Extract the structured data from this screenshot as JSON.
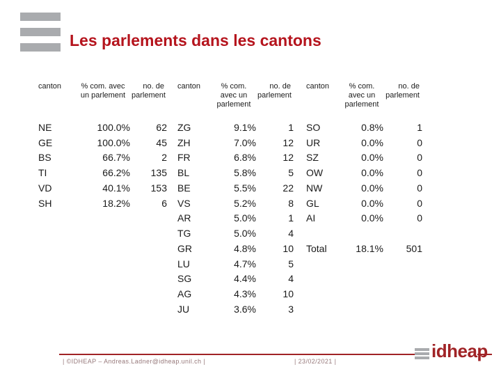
{
  "slide": {
    "title": "Les parlements dans les cantons"
  },
  "table": {
    "col_headers": {
      "canton": "canton",
      "percent_two_line": [
        "% com. avec",
        "un parlement"
      ],
      "percent_three_line": [
        "% com.",
        "avec un",
        "parlement"
      ],
      "count_two_line": [
        "no. de",
        "parlement"
      ]
    },
    "total_label": "Total",
    "groups": [
      {
        "percent_header_lines": 2,
        "rows": [
          [
            "NE",
            "100.0%",
            "62"
          ],
          [
            "GE",
            "100.0%",
            "45"
          ],
          [
            "BS",
            "66.7%",
            "2"
          ],
          [
            "TI",
            "66.2%",
            "135"
          ],
          [
            "VD",
            "40.1%",
            "153"
          ],
          [
            "SH",
            "18.2%",
            "6"
          ]
        ]
      },
      {
        "percent_header_lines": 3,
        "rows": [
          [
            "ZG",
            "9.1%",
            "1"
          ],
          [
            "ZH",
            "7.0%",
            "12"
          ],
          [
            "FR",
            "6.8%",
            "12"
          ],
          [
            "BL",
            "5.8%",
            "5"
          ],
          [
            "BE",
            "5.5%",
            "22"
          ],
          [
            "VS",
            "5.2%",
            "8"
          ],
          [
            "AR",
            "5.0%",
            "1"
          ],
          [
            "TG",
            "5.0%",
            "4"
          ],
          [
            "GR",
            "4.8%",
            "10"
          ],
          [
            "LU",
            "4.7%",
            "5"
          ],
          [
            "SG",
            "4.4%",
            "4"
          ],
          [
            "AG",
            "4.3%",
            "10"
          ],
          [
            "JU",
            "3.6%",
            "3"
          ]
        ]
      },
      {
        "percent_header_lines": 3,
        "rows": [
          [
            "SO",
            "0.8%",
            "1"
          ],
          [
            "UR",
            "0.0%",
            "0"
          ],
          [
            "SZ",
            "0.0%",
            "0"
          ],
          [
            "OW",
            "0.0%",
            "0"
          ],
          [
            "NW",
            "0.0%",
            "0"
          ],
          [
            "GL",
            "0.0%",
            "0"
          ],
          [
            "AI",
            "0.0%",
            "0"
          ],
          null,
          [
            "Total",
            "18.1%",
            "501"
          ]
        ]
      }
    ]
  },
  "footer": {
    "credit": "| ©IDHEAP – Andreas.Ladner@idheap.unil.ch |",
    "date": "| 23/02/2021 |",
    "logo_text": "idheap"
  },
  "colors": {
    "accent_red": "#b5141d",
    "gray_bar": "#a9abae",
    "footer_line_red": "#a02326",
    "footer_text": "#97797b",
    "table_text": "#1a1a1a"
  }
}
